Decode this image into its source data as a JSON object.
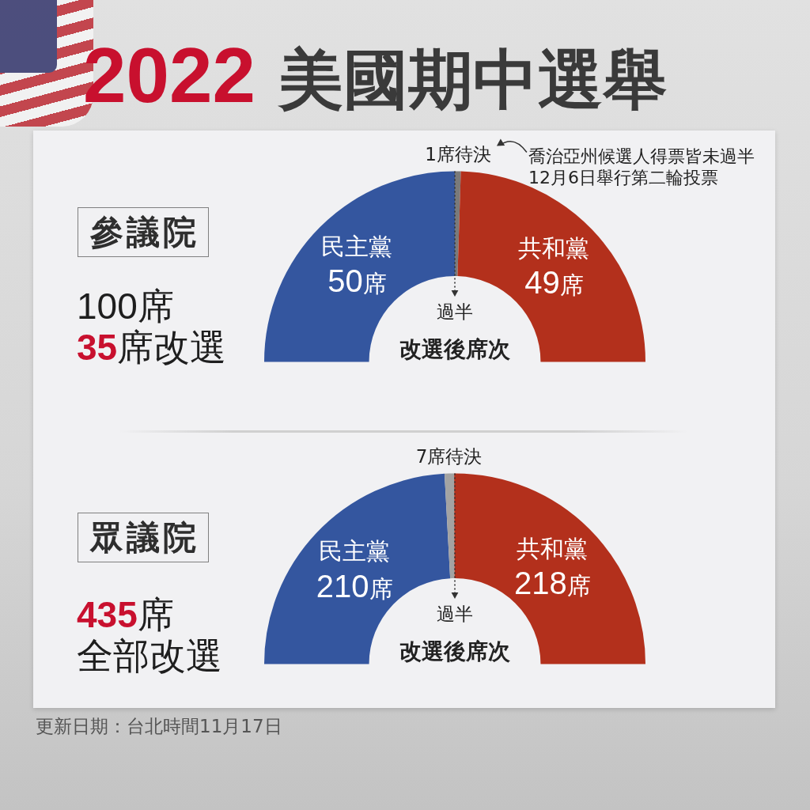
{
  "chart_data": [
    {
      "type": "donut",
      "title": "2022 美國期中選舉",
      "subtitle": "參議院",
      "categories": [
        "民主黨",
        null,
        "共和黨"
      ],
      "values": [
        50,
        1,
        49
      ],
      "colors": [
        "#34569f",
        "#7a7a7a",
        "#b3301c"
      ],
      "value_labels": [
        "50席",
        "1席待決",
        "49席"
      ],
      "annotations": [
        "100席",
        "35席改選",
        "過半",
        "改選後席次",
        "喬治亞州候選人得票皆未過半\n12月6日舉行第二輪投票"
      ]
    },
    {
      "type": "donut",
      "subtitle": "眾議院",
      "categories": [
        "民主黨",
        null,
        "共和黨"
      ],
      "values": [
        210,
        7,
        218
      ],
      "colors": [
        "#34569f",
        "#a3a3a3",
        "#b3301c"
      ],
      "value_labels": [
        "210席",
        "7席待決",
        "218席"
      ],
      "annotations": [
        "435席",
        "全部改選",
        "過半",
        "改選後席次",
        "更新日期：台北時間11月17日"
      ]
    }
  ]
}
